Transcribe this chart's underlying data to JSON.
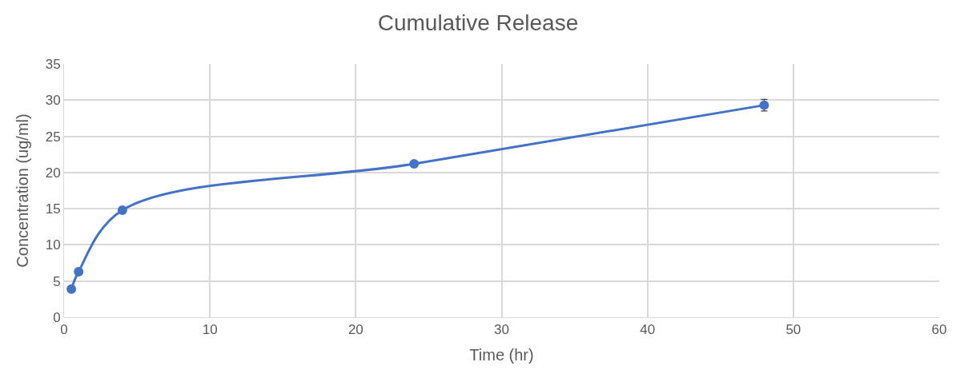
{
  "chart_data": {
    "type": "line",
    "title": "Cumulative Release",
    "xlabel": "Time (hr)",
    "ylabel": "Concentration (ug/ml)",
    "x": [
      0.5,
      1,
      4,
      24,
      48
    ],
    "series": [
      {
        "color": "#4472c4",
        "values": [
          3.9,
          6.3,
          14.8,
          21.2,
          29.3
        ],
        "errors": [
          null,
          null,
          null,
          null,
          0.8
        ]
      }
    ],
    "xlim": [
      0,
      60
    ],
    "xticks": [
      0,
      10,
      20,
      30,
      40,
      50,
      60
    ],
    "ylim": [
      0,
      35
    ],
    "yticks": [
      0,
      5,
      10,
      15,
      20,
      25,
      30,
      35
    ],
    "grid": true,
    "marker": "circle",
    "line_style": "solid",
    "legend": false
  }
}
